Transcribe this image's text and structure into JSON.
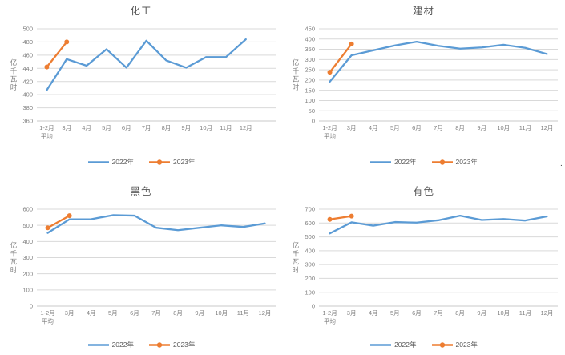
{
  "colors": {
    "series_2022": "#5B9BD5",
    "series_2023": "#ED7D31",
    "gridline": "#D9D9D9",
    "axis_line": "#C8C8C8",
    "tick_text": "#7F7F7F",
    "title_text": "#595959",
    "background": "#FFFFFF"
  },
  "artifact": {
    "stray_period": "."
  },
  "chart_data": [
    {
      "type": "line",
      "title": "化工",
      "ylabel": "亿千瓦时",
      "categories": [
        "1-2月\n平均",
        "3月",
        "4月",
        "5月",
        "6月",
        "7月",
        "8月",
        "9月",
        "10月",
        "11月",
        "12月"
      ],
      "ylim": [
        360,
        500
      ],
      "ytick_step": 20,
      "grid": true,
      "legend_position": "bottom",
      "extra_right_slots": 1,
      "series": [
        {
          "name": "2022年",
          "color_key": "series_2022",
          "marker": false,
          "values": [
            407,
            454,
            444,
            469,
            441,
            482,
            452,
            441,
            457,
            457,
            484
          ]
        },
        {
          "name": "2023年",
          "color_key": "series_2023",
          "marker": true,
          "values": [
            442,
            480
          ]
        }
      ]
    },
    {
      "type": "line",
      "title": "建材",
      "ylabel": "亿千瓦时",
      "categories": [
        "1-2月\n平均",
        "3月",
        "4月",
        "5月",
        "6月",
        "7月",
        "8月",
        "9月",
        "10月",
        "11月",
        "12月"
      ],
      "ylim": [
        0,
        450
      ],
      "ytick_step": 50,
      "grid": true,
      "legend_position": "bottom",
      "extra_right_slots": 0,
      "series": [
        {
          "name": "2022年",
          "color_key": "series_2022",
          "marker": false,
          "values": [
            192,
            321,
            345,
            369,
            387,
            367,
            353,
            359,
            372,
            357,
            327
          ]
        },
        {
          "name": "2023年",
          "color_key": "series_2023",
          "marker": true,
          "values": [
            238,
            376
          ]
        }
      ]
    },
    {
      "type": "line",
      "title": "黑色",
      "ylabel": "亿千瓦时",
      "categories": [
        "1-2月\n平均",
        "3月",
        "4月",
        "5月",
        "6月",
        "7月",
        "8月",
        "9月",
        "10月",
        "11月",
        "12月"
      ],
      "ylim": [
        0,
        600
      ],
      "ytick_step": 100,
      "grid": true,
      "legend_position": "bottom",
      "extra_right_slots": 0,
      "series": [
        {
          "name": "2022年",
          "color_key": "series_2022",
          "marker": false,
          "values": [
            453,
            537,
            538,
            563,
            560,
            485,
            470,
            485,
            500,
            490,
            512
          ]
        },
        {
          "name": "2023年",
          "color_key": "series_2023",
          "marker": true,
          "values": [
            485,
            560
          ]
        }
      ]
    },
    {
      "type": "line",
      "title": "有色",
      "ylabel": "亿千瓦时",
      "categories": [
        "1-2月\n平均",
        "3月",
        "4月",
        "5月",
        "6月",
        "7月",
        "8月",
        "9月",
        "10月",
        "11月",
        "12月"
      ],
      "ylim": [
        0,
        700
      ],
      "ytick_step": 100,
      "grid": true,
      "legend_position": "bottom",
      "extra_right_slots": 0,
      "series": [
        {
          "name": "2022年",
          "color_key": "series_2022",
          "marker": false,
          "values": [
            525,
            605,
            581,
            607,
            603,
            620,
            653,
            622,
            629,
            618,
            648
          ]
        },
        {
          "name": "2023年",
          "color_key": "series_2023",
          "marker": true,
          "values": [
            626,
            650
          ]
        }
      ]
    }
  ]
}
